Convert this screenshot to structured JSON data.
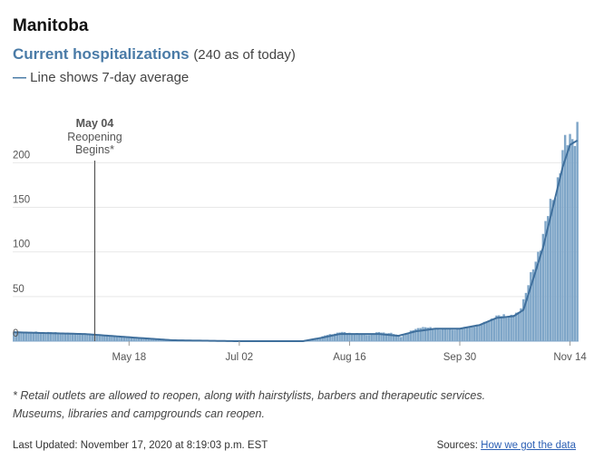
{
  "title": "Manitoba",
  "subtitle": {
    "highlight": "Current hospitalizations",
    "note": "(240 as of today)"
  },
  "legend": {
    "dash": "—",
    "label": "Line shows 7-day average"
  },
  "colors": {
    "bar": "#7fa6c8",
    "line": "#3f6f9c",
    "accent": "#4a7ba7",
    "grid": "#e8e8e8",
    "annotation_line": "#555555"
  },
  "chart_data": {
    "type": "bar",
    "x_start": "2020-04-01",
    "x_end": "2020-11-17",
    "ylim": [
      0,
      240
    ],
    "yticks": [
      0,
      50,
      100,
      150,
      200
    ],
    "xtick_labels": [
      "May 18",
      "Jul 02",
      "Aug 16",
      "Sep 30",
      "Nov 14"
    ],
    "grid": true,
    "daily_keypoints": [
      [
        "2020-04-01",
        10
      ],
      [
        "2020-04-15",
        10
      ],
      [
        "2020-04-30",
        8
      ],
      [
        "2020-05-10",
        6
      ],
      [
        "2020-05-20",
        4
      ],
      [
        "2020-06-05",
        1
      ],
      [
        "2020-07-01",
        0
      ],
      [
        "2020-07-25",
        0
      ],
      [
        "2020-08-01",
        2
      ],
      [
        "2020-08-07",
        7
      ],
      [
        "2020-08-12",
        10
      ],
      [
        "2020-08-18",
        9
      ],
      [
        "2020-08-24",
        7
      ],
      [
        "2020-08-28",
        10
      ],
      [
        "2020-09-02",
        9
      ],
      [
        "2020-09-06",
        5
      ],
      [
        "2020-09-10",
        11
      ],
      [
        "2020-09-14",
        16
      ],
      [
        "2020-09-20",
        14
      ],
      [
        "2020-09-26",
        13
      ],
      [
        "2020-10-02",
        15
      ],
      [
        "2020-10-08",
        18
      ],
      [
        "2020-10-13",
        25
      ],
      [
        "2020-10-18",
        30
      ],
      [
        "2020-10-21",
        28
      ],
      [
        "2020-10-24",
        32
      ],
      [
        "2020-10-27",
        55
      ],
      [
        "2020-10-30",
        80
      ],
      [
        "2020-11-02",
        110
      ],
      [
        "2020-11-05",
        140
      ],
      [
        "2020-11-08",
        170
      ],
      [
        "2020-11-11",
        210
      ],
      [
        "2020-11-14",
        228
      ],
      [
        "2020-11-17",
        240
      ]
    ],
    "average_keypoints": [
      [
        "2020-04-01",
        10
      ],
      [
        "2020-04-15",
        9
      ],
      [
        "2020-04-30",
        8
      ],
      [
        "2020-05-10",
        6
      ],
      [
        "2020-05-20",
        4
      ],
      [
        "2020-06-05",
        1
      ],
      [
        "2020-07-01",
        0
      ],
      [
        "2020-07-28",
        0
      ],
      [
        "2020-08-05",
        4
      ],
      [
        "2020-08-12",
        8
      ],
      [
        "2020-08-20",
        8
      ],
      [
        "2020-08-28",
        8
      ],
      [
        "2020-09-05",
        6
      ],
      [
        "2020-09-12",
        11
      ],
      [
        "2020-09-20",
        14
      ],
      [
        "2020-09-30",
        14
      ],
      [
        "2020-10-08",
        18
      ],
      [
        "2020-10-15",
        26
      ],
      [
        "2020-10-22",
        28
      ],
      [
        "2020-10-26",
        35
      ],
      [
        "2020-10-30",
        70
      ],
      [
        "2020-11-03",
        105
      ],
      [
        "2020-11-07",
        150
      ],
      [
        "2020-11-11",
        195
      ],
      [
        "2020-11-14",
        220
      ],
      [
        "2020-11-17",
        225
      ]
    ],
    "annotation": {
      "date": "2020-05-04",
      "label_bold": "May 04",
      "line1": "Reopening",
      "line2": "Begins*"
    }
  },
  "footnote": {
    "line1": "* Retail outlets are allowed to reopen, along with hairstylists, barbers and therapeutic services.",
    "line2": "Museums, libraries and campgrounds can reopen."
  },
  "footer": {
    "updated": "Last Updated: November 17, 2020 at 8:19:03 p.m. EST",
    "sources_label": "Sources:",
    "sources_link": "How we got the data"
  }
}
